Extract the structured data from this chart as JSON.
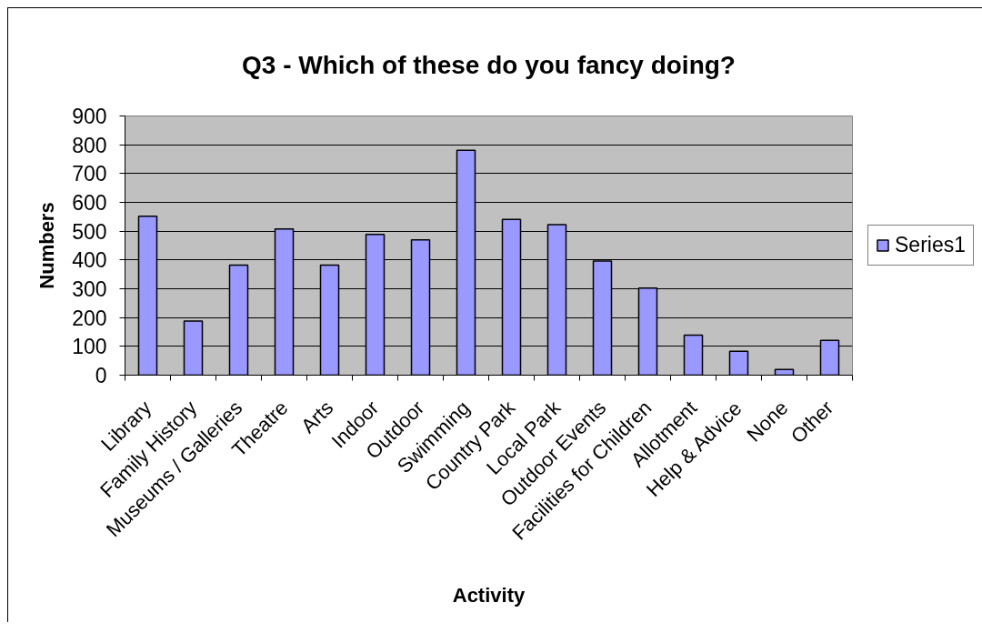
{
  "chart_data": {
    "type": "bar",
    "title": "Q3 - Which of these do you fancy doing?",
    "xlabel": "Activity",
    "ylabel": "Numbers",
    "categories": [
      "Library",
      "Family History",
      "Museums / Galleries",
      "Theatre",
      "Arts",
      "Indoor",
      "Outdoor",
      "Swimming",
      "Country Park",
      "Local Park",
      "Outdoor Events",
      "Facilities for Children",
      "Allotment",
      "Help & Advice",
      "None",
      "Other"
    ],
    "series": [
      {
        "name": "Series1",
        "color": "#9999ff",
        "values": [
          552,
          188,
          382,
          508,
          382,
          489,
          470,
          781,
          541,
          523,
          396,
          302,
          139,
          83,
          20,
          121
        ]
      }
    ],
    "ylim": [
      0,
      900
    ],
    "yticks": [
      0,
      100,
      200,
      300,
      400,
      500,
      600,
      700,
      800,
      900
    ],
    "grid": "y",
    "legend": "right"
  }
}
